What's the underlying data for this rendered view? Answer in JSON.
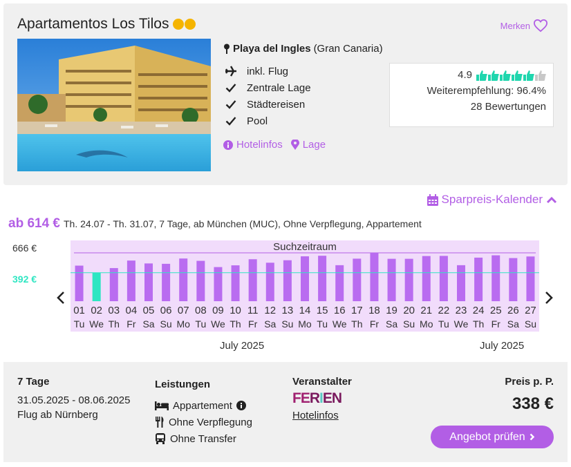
{
  "hotel": {
    "name": "Apartamentos Los Tilos",
    "stars": 2,
    "merken_label": "Merken",
    "location_bold": "Playa del Ingles",
    "location_region": "(Gran Canaria)",
    "features": [
      {
        "icon": "plane-icon",
        "label": "inkl. Flug"
      },
      {
        "icon": "check-icon",
        "label": "Zentrale Lage"
      },
      {
        "icon": "check-icon",
        "label": "Städtereisen"
      },
      {
        "icon": "check-icon",
        "label": "Pool"
      }
    ],
    "link_hotelinfos": "Hotelinfos",
    "link_lage": "Lage"
  },
  "rating": {
    "score": "4.9",
    "thumbs_filled": 5,
    "recommendation": "Weiterempfehlung: 96.4%",
    "reviews": "28 Bewertungen"
  },
  "calendar": {
    "toggle_label": "Sparpreis-Kalender",
    "from_price": "ab 614 €",
    "details": "Th. 24.07 - Th. 31.07, 7 Tage, ab München (MUC), Ohne Verpflegung, Appartement"
  },
  "chart_data": {
    "type": "bar",
    "title": "Suchzeitraum",
    "max_label": "666 €",
    "min_label": "392 €",
    "ylim": [
      0,
      666
    ],
    "min_value": 392,
    "categories": [
      "01",
      "02",
      "03",
      "04",
      "05",
      "06",
      "07",
      "08",
      "09",
      "10",
      "11",
      "12",
      "13",
      "14",
      "15",
      "16",
      "17",
      "18",
      "19",
      "20",
      "21",
      "22",
      "23",
      "24",
      "25",
      "26",
      "27"
    ],
    "weekdays": [
      "Tu",
      "We",
      "Th",
      "Fr",
      "Sa",
      "Su",
      "Mo",
      "Tu",
      "We",
      "Th",
      "Fr",
      "Sa",
      "Su",
      "Mo",
      "Tu",
      "We",
      "Th",
      "Fr",
      "Sa",
      "Su",
      "Mo",
      "Tu",
      "We",
      "Th",
      "Fr",
      "Sa",
      "Su"
    ],
    "values": [
      490,
      392,
      456,
      560,
      520,
      515,
      588,
      556,
      470,
      494,
      578,
      530,
      564,
      618,
      626,
      496,
      586,
      666,
      584,
      584,
      622,
      624,
      496,
      600,
      632,
      594,
      616
    ],
    "highlight_index": 1,
    "month_labels": [
      "July 2025",
      "July 2025"
    ]
  },
  "offer": {
    "duration": "7 Tage",
    "dates": "31.05.2025 - 08.06.2025",
    "flight": "Flug ab Nürnberg",
    "services_title": "Leistungen",
    "services": [
      "Appartement",
      "Ohne Verpflegung",
      "Ohne Transfer"
    ],
    "operator_title": "Veranstalter",
    "operator_brand": "FERIEN",
    "operator_link": "Hotelinfos",
    "price_label": "Preis p. P.",
    "price": "338 €",
    "cta": "Angebot prüfen"
  },
  "colors": {
    "accent": "#b25ee5",
    "bar": "#b96cf0",
    "bar_highlight": "#2ee6c2",
    "chart_bg": "#f1dcfb"
  }
}
